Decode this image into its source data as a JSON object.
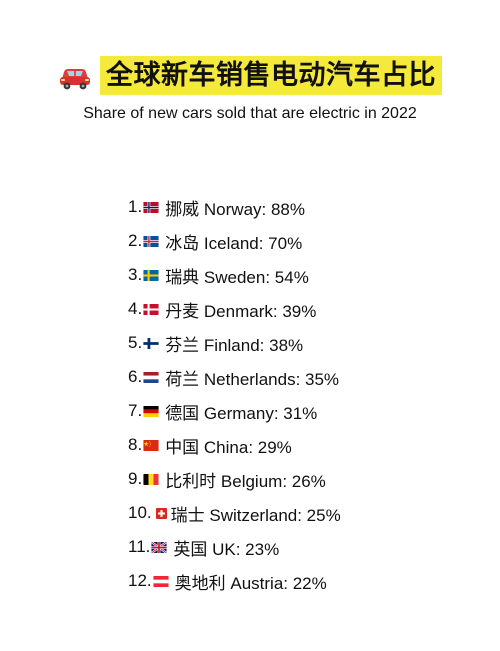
{
  "header": {
    "title": "全球新车销售电动汽车占比",
    "title_icon": "red-car-icon",
    "highlight_color": "#f5ea3b",
    "subtitle": "Share of new cars sold that are electric in 2022"
  },
  "ranking": [
    {
      "rank": "1.",
      "flag": "norway-flag-icon",
      "text": "挪威 Norway: 88%",
      "share_percent": 88
    },
    {
      "rank": "2.",
      "flag": "iceland-flag-icon",
      "text": "冰岛 Iceland: 70%",
      "share_percent": 70
    },
    {
      "rank": "3.",
      "flag": "sweden-flag-icon",
      "text": "瑞典 Sweden: 54%",
      "share_percent": 54
    },
    {
      "rank": "4.",
      "flag": "denmark-flag-icon",
      "text": "丹麦 Denmark: 39%",
      "share_percent": 39
    },
    {
      "rank": "5.",
      "flag": "finland-flag-icon",
      "text": "芬兰 Finland: 38%",
      "share_percent": 38
    },
    {
      "rank": "6.",
      "flag": "netherlands-flag-icon",
      "text": "荷兰 Netherlands: 35%",
      "share_percent": 35
    },
    {
      "rank": "7.",
      "flag": "germany-flag-icon",
      "text": "德国 Germany: 31%",
      "share_percent": 31
    },
    {
      "rank": "8.",
      "flag": "china-flag-icon",
      "text": "中国 China: 29%",
      "share_percent": 29
    },
    {
      "rank": "9.",
      "flag": "belgium-flag-icon",
      "text": "比利时 Belgium: 26%",
      "share_percent": 26
    },
    {
      "rank": "10.",
      "flag": "switzerland-flag-icon",
      "text": " 瑞士 Switzerland: 25%",
      "share_percent": 25
    },
    {
      "rank": "11.",
      "flag": "uk-flag-icon",
      "text": "英国 UK: 23%",
      "share_percent": 23
    },
    {
      "rank": "12.",
      "flag": "austria-flag-icon",
      "text": "奥地利 Austria: 22%",
      "share_percent": 22
    }
  ]
}
